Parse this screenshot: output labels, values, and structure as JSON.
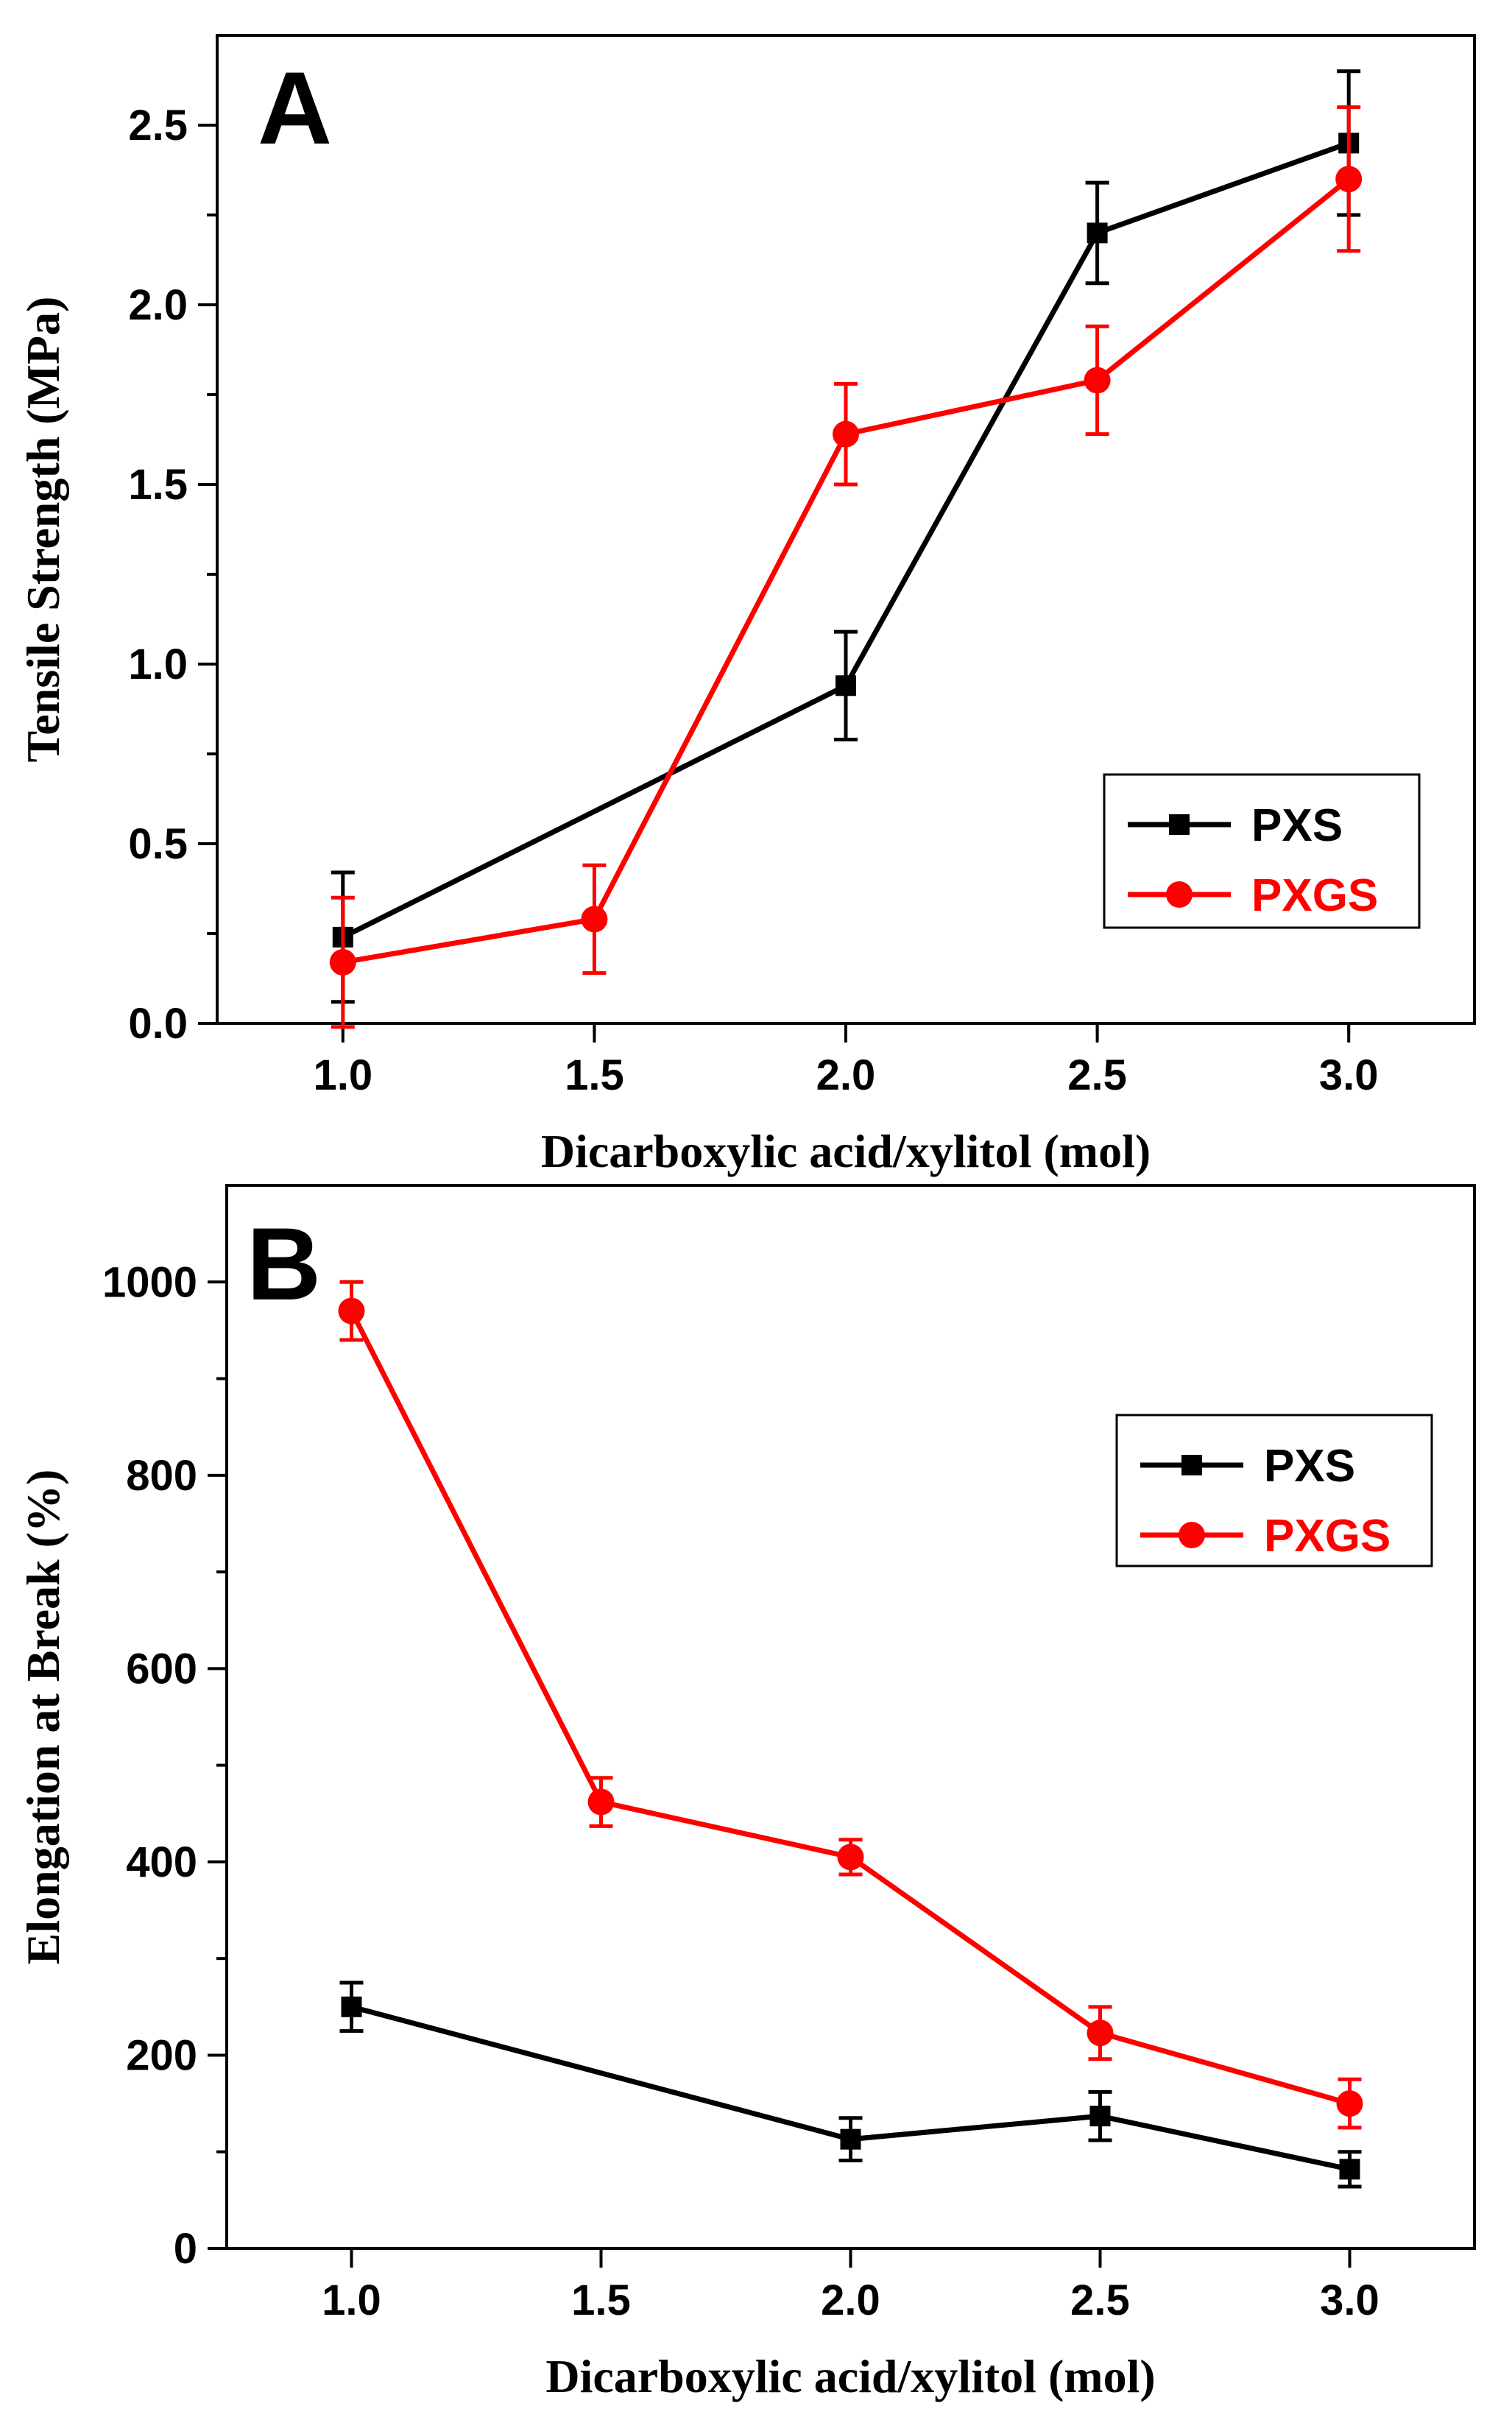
{
  "chart_data": [
    {
      "type": "line",
      "panel_label": "A",
      "xlabel": "Dicarboxylic acid/xylitol (mol)",
      "ylabel": "Tensile Strength (MPa)",
      "xlim": [
        0.75,
        3.25
      ],
      "ylim": [
        0,
        2.75
      ],
      "x_ticks": [
        "1.0",
        "1.5",
        "2.0",
        "2.5",
        "3.0"
      ],
      "y_ticks": [
        "0.0",
        "0.5",
        "1.0",
        "1.5",
        "2.0",
        "2.5"
      ],
      "legend_position": "lower-right",
      "series": [
        {
          "name": "PXS",
          "color": "#000000",
          "marker": "square",
          "points": [
            {
              "x": 1.0,
              "y": 0.24,
              "err": 0.18
            },
            {
              "x": 2.0,
              "y": 0.94,
              "err": 0.15
            },
            {
              "x": 2.5,
              "y": 2.2,
              "err": 0.14
            },
            {
              "x": 3.0,
              "y": 2.45,
              "err": 0.2
            }
          ]
        },
        {
          "name": "PXGS",
          "color": "#ff0000",
          "marker": "circle",
          "points": [
            {
              "x": 1.0,
              "y": 0.17,
              "err": 0.18
            },
            {
              "x": 1.5,
              "y": 0.29,
              "err": 0.15
            },
            {
              "x": 2.0,
              "y": 1.64,
              "err": 0.14
            },
            {
              "x": 2.5,
              "y": 1.79,
              "err": 0.15
            },
            {
              "x": 3.0,
              "y": 2.35,
              "err": 0.2
            }
          ]
        }
      ]
    },
    {
      "type": "line",
      "panel_label": "B",
      "xlabel": "Dicarboxylic acid/xylitol (mol)",
      "ylabel": "Elongation at Break (%)",
      "xlim": [
        0.75,
        3.25
      ],
      "ylim": [
        0,
        1100
      ],
      "x_ticks": [
        "1.0",
        "1.5",
        "2.0",
        "2.5",
        "3.0"
      ],
      "y_ticks": [
        "0",
        "200",
        "400",
        "600",
        "800",
        "1000"
      ],
      "legend_position": "upper-right",
      "series": [
        {
          "name": "PXS",
          "color": "#000000",
          "marker": "square",
          "points": [
            {
              "x": 1.0,
              "y": 250,
              "err": 25
            },
            {
              "x": 2.0,
              "y": 113,
              "err": 22
            },
            {
              "x": 2.5,
              "y": 137,
              "err": 25
            },
            {
              "x": 3.0,
              "y": 82,
              "err": 18
            }
          ]
        },
        {
          "name": "PXGS",
          "color": "#ff0000",
          "marker": "circle",
          "points": [
            {
              "x": 1.0,
              "y": 970,
              "err": 30
            },
            {
              "x": 1.5,
              "y": 462,
              "err": 25
            },
            {
              "x": 2.0,
              "y": 405,
              "err": 18
            },
            {
              "x": 2.5,
              "y": 223,
              "err": 27
            },
            {
              "x": 3.0,
              "y": 150,
              "err": 25
            }
          ]
        }
      ]
    }
  ]
}
